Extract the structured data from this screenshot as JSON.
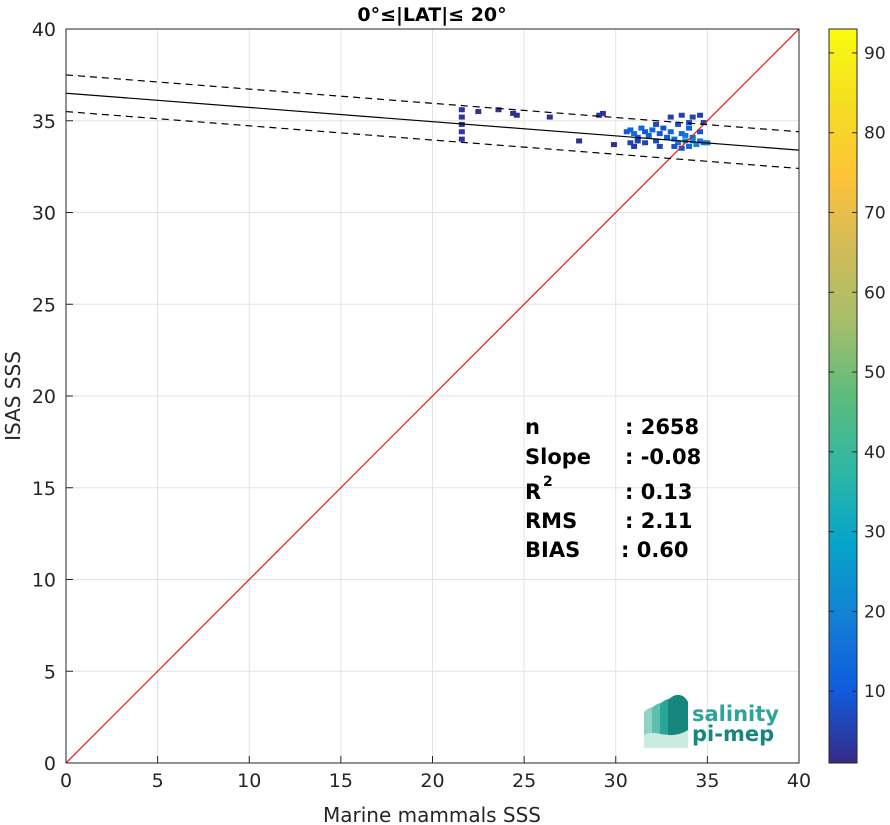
{
  "chart_data": {
    "type": "scatter",
    "title": "0°≤|LAT|≤ 20°",
    "xlabel": "Marine mammals SSS",
    "ylabel": "ISAS SSS",
    "xlim": [
      0,
      40
    ],
    "ylim": [
      0,
      40
    ],
    "x_ticks": [
      0,
      5,
      10,
      15,
      20,
      25,
      30,
      35,
      40
    ],
    "y_ticks": [
      0,
      5,
      10,
      15,
      20,
      25,
      30,
      35,
      40
    ],
    "grid": true,
    "colorbar": {
      "range": [
        1,
        93
      ],
      "ticks": [
        10,
        20,
        30,
        40,
        50,
        60,
        70,
        80,
        90
      ],
      "colormap": "parula"
    },
    "lines": [
      {
        "name": "identity",
        "style": "solid",
        "color": "#e41a1c",
        "points": [
          [
            0,
            0
          ],
          [
            40,
            40
          ]
        ]
      },
      {
        "name": "fit",
        "style": "solid",
        "color": "#000000",
        "points": [
          [
            0,
            36.5
          ],
          [
            40,
            33.4
          ]
        ]
      },
      {
        "name": "fit_upper",
        "style": "dashed",
        "color": "#000000",
        "points": [
          [
            0,
            37.5
          ],
          [
            40,
            34.4
          ]
        ]
      },
      {
        "name": "fit_lower",
        "style": "dashed",
        "color": "#000000",
        "points": [
          [
            0,
            35.5
          ],
          [
            40,
            32.4
          ]
        ]
      }
    ],
    "density_points": [
      {
        "x": 21.6,
        "y": 35.6,
        "c": 3
      },
      {
        "x": 21.6,
        "y": 35.2,
        "c": 3
      },
      {
        "x": 21.6,
        "y": 34.8,
        "c": 3
      },
      {
        "x": 21.6,
        "y": 34.4,
        "c": 3
      },
      {
        "x": 21.6,
        "y": 34.0,
        "c": 3
      },
      {
        "x": 22.5,
        "y": 35.5,
        "c": 2
      },
      {
        "x": 23.6,
        "y": 35.6,
        "c": 2
      },
      {
        "x": 24.4,
        "y": 35.4,
        "c": 2
      },
      {
        "x": 24.6,
        "y": 35.3,
        "c": 2
      },
      {
        "x": 26.4,
        "y": 35.2,
        "c": 2
      },
      {
        "x": 28.0,
        "y": 33.9,
        "c": 2
      },
      {
        "x": 29.1,
        "y": 35.3,
        "c": 3
      },
      {
        "x": 29.3,
        "y": 35.4,
        "c": 3
      },
      {
        "x": 29.9,
        "y": 33.7,
        "c": 2
      },
      {
        "x": 30.6,
        "y": 34.4,
        "c": 10
      },
      {
        "x": 30.8,
        "y": 34.5,
        "c": 12
      },
      {
        "x": 31.0,
        "y": 34.3,
        "c": 14
      },
      {
        "x": 31.2,
        "y": 34.1,
        "c": 10
      },
      {
        "x": 31.4,
        "y": 34.6,
        "c": 12
      },
      {
        "x": 31.6,
        "y": 34.4,
        "c": 9
      },
      {
        "x": 31.8,
        "y": 34.2,
        "c": 11
      },
      {
        "x": 32.0,
        "y": 34.5,
        "c": 13
      },
      {
        "x": 30.8,
        "y": 33.8,
        "c": 6
      },
      {
        "x": 31.2,
        "y": 33.9,
        "c": 5
      },
      {
        "x": 31.6,
        "y": 33.8,
        "c": 6
      },
      {
        "x": 32.2,
        "y": 33.9,
        "c": 7
      },
      {
        "x": 32.4,
        "y": 34.3,
        "c": 9
      },
      {
        "x": 32.6,
        "y": 34.6,
        "c": 8
      },
      {
        "x": 32.8,
        "y": 34.1,
        "c": 10
      },
      {
        "x": 33.0,
        "y": 34.4,
        "c": 12
      },
      {
        "x": 33.2,
        "y": 34.0,
        "c": 14
      },
      {
        "x": 33.4,
        "y": 33.8,
        "c": 18
      },
      {
        "x": 33.6,
        "y": 34.3,
        "c": 13
      },
      {
        "x": 33.8,
        "y": 33.9,
        "c": 20
      },
      {
        "x": 34.0,
        "y": 34.6,
        "c": 11
      },
      {
        "x": 34.2,
        "y": 34.1,
        "c": 15
      },
      {
        "x": 34.4,
        "y": 33.7,
        "c": 22
      },
      {
        "x": 34.6,
        "y": 34.4,
        "c": 9
      },
      {
        "x": 34.8,
        "y": 33.8,
        "c": 16
      },
      {
        "x": 35.0,
        "y": 33.8,
        "c": 19
      },
      {
        "x": 33.2,
        "y": 33.6,
        "c": 8
      },
      {
        "x": 33.6,
        "y": 33.5,
        "c": 9
      },
      {
        "x": 34.0,
        "y": 33.6,
        "c": 12
      },
      {
        "x": 32.4,
        "y": 33.6,
        "c": 6
      },
      {
        "x": 33.0,
        "y": 35.2,
        "c": 5
      },
      {
        "x": 33.6,
        "y": 35.3,
        "c": 5
      },
      {
        "x": 34.2,
        "y": 35.2,
        "c": 6
      },
      {
        "x": 34.6,
        "y": 35.3,
        "c": 5
      },
      {
        "x": 32.2,
        "y": 34.8,
        "c": 7
      },
      {
        "x": 33.4,
        "y": 34.8,
        "c": 8
      },
      {
        "x": 34.0,
        "y": 34.9,
        "c": 7
      },
      {
        "x": 34.8,
        "y": 34.9,
        "c": 6
      },
      {
        "x": 31.0,
        "y": 33.6,
        "c": 4
      },
      {
        "x": 33.8,
        "y": 34.2,
        "c": 17
      },
      {
        "x": 34.2,
        "y": 33.9,
        "c": 21
      },
      {
        "x": 34.6,
        "y": 33.9,
        "c": 18
      }
    ]
  },
  "stats": {
    "n_label": "n",
    "n_value": ": 2658",
    "slope_label": "Slope",
    "slope_value": ": -0.08",
    "r2_label": "R",
    "r2_sup": "2",
    "r2_value": ": 0.13",
    "rms_label": "RMS",
    "rms_value": ": 2.11",
    "bias_label": "BIAS",
    "bias_value": ": 0.60"
  },
  "logo": {
    "line1": "salinity",
    "line2": "pi-mep",
    "color": "#2aa59a"
  }
}
